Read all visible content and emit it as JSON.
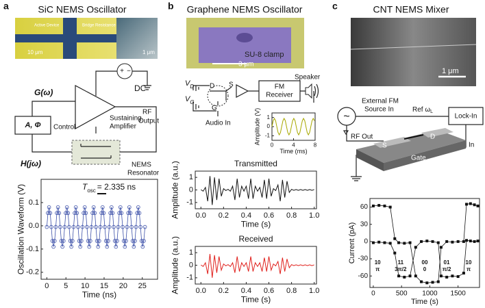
{
  "panels": {
    "a": {
      "letter": "a",
      "title": "SiC NEMS Oscillator",
      "sem_labels": [
        "Active Device",
        "Bridge Resistance",
        "10 μm",
        "1 μm"
      ],
      "gain": "G(ω)",
      "dc": "DC",
      "plus": "+",
      "minus": "−",
      "control_box": "A, Φ",
      "control": "Control",
      "amplifier": [
        "Sustaining",
        "Amplifier"
      ],
      "output": [
        "RF",
        "Output"
      ],
      "transfer": "H(jω)",
      "resonator": [
        "NEMS",
        "Resonator"
      ]
    },
    "b": {
      "letter": "b",
      "title": "Graphene NEMS Oscillator",
      "clamp": "SU-8 clamp",
      "scale": "3 μm",
      "vd": {
        "main": "V",
        "sub": "D"
      },
      "vg": {
        "main": "V",
        "sub": "G"
      },
      "d": "D",
      "s": "S",
      "g": "G",
      "receiver": [
        "FM",
        "Receiver"
      ],
      "speaker": "Speaker",
      "audio": "Audio In"
    },
    "c": {
      "letter": "c",
      "title": "CNT NEMS Mixer",
      "scale": "1 μm",
      "source": [
        "External FM",
        "Source In"
      ],
      "ref": {
        "main": "Ref ω",
        "sub": "L"
      },
      "lockin": "Lock-In",
      "rfout": "RF Out",
      "s": "S",
      "d": "D",
      "gate": "Gate",
      "in": "In",
      "tilde": "~"
    }
  },
  "chart_data": [
    {
      "type": "line",
      "marker": "circle",
      "xlabel": "Time (ns)",
      "ylabel": "Oscillation Waveform (V)",
      "annotation": {
        "symbol": "T",
        "subscript": "osc",
        "text": "= 2.335 ns"
      },
      "xlim": [
        -1.5,
        29
      ],
      "ylim": [
        -0.23,
        0.2
      ],
      "xticks": [
        0,
        5,
        10,
        15,
        20,
        25
      ],
      "yticks": [
        -0.2,
        -0.1,
        {
          "value": 0,
          "label": "0.0"
        },
        0.1
      ],
      "x": [
        0,
        0.29,
        0.58,
        0.88,
        1.17,
        1.46,
        1.75,
        2.04,
        2.34,
        2.63,
        2.92,
        3.21,
        3.5,
        3.8,
        4.09,
        4.38,
        4.67,
        4.96,
        5.26,
        5.55,
        5.84,
        6.13,
        6.42,
        6.72,
        7.01,
        7.3,
        7.59,
        7.88,
        8.18,
        8.47,
        8.76,
        9.05,
        9.34,
        9.64,
        9.93,
        10.22,
        10.51,
        10.8,
        11.1,
        11.39,
        11.68,
        11.97,
        12.26,
        12.56,
        12.85,
        13.14,
        13.43,
        13.72,
        14.02,
        14.31,
        14.6,
        14.89,
        15.18,
        15.48,
        15.77,
        16.06,
        16.35,
        16.64,
        16.94,
        17.23,
        17.52,
        17.81,
        18.1,
        18.4,
        18.69,
        18.98,
        19.27,
        19.56,
        19.86,
        20.15,
        20.44,
        20.73,
        21.02,
        21.32,
        21.61,
        21.9,
        22.19,
        22.48,
        22.78,
        23.07,
        23.36,
        23.65,
        23.94,
        24.24,
        24.53,
        24.82,
        25.11,
        25.4,
        25.7
      ],
      "series": [
        {
          "color": "#3b4fa8",
          "values": [
            -0.005,
            0.055,
            0.08,
            0.055,
            -0.005,
            -0.065,
            -0.09,
            -0.065,
            -0.005,
            0.055,
            0.08,
            0.055,
            -0.005,
            -0.065,
            -0.09,
            -0.065,
            -0.005,
            0.055,
            0.08,
            0.055,
            -0.005,
            -0.065,
            -0.09,
            -0.065,
            -0.005,
            0.055,
            0.08,
            0.055,
            -0.005,
            -0.065,
            -0.09,
            -0.065,
            -0.005,
            0.055,
            0.08,
            0.055,
            -0.005,
            -0.065,
            -0.09,
            -0.065,
            -0.005,
            0.055,
            0.08,
            0.055,
            -0.005,
            -0.065,
            -0.09,
            -0.065,
            -0.005,
            0.055,
            0.08,
            0.055,
            -0.005,
            -0.065,
            -0.09,
            -0.065,
            -0.005,
            0.055,
            0.08,
            0.055,
            -0.005,
            -0.065,
            -0.09,
            -0.065,
            -0.005,
            0.055,
            0.08,
            0.055,
            -0.005,
            -0.065,
            -0.09,
            -0.065,
            -0.005,
            0.055,
            0.08,
            0.055,
            -0.005,
            -0.065,
            -0.09,
            -0.065,
            -0.005,
            0.055,
            0.08,
            0.055,
            -0.005,
            -0.065,
            -0.09,
            -0.065,
            -0.005
          ]
        }
      ]
    },
    {
      "type": "line",
      "xlabel": "Time (ms)",
      "ylabel": "Amplitude (V)",
      "xlim": [
        0,
        8
      ],
      "ylim": [
        -1.5,
        1.5
      ],
      "xticks": [
        0,
        4,
        8
      ],
      "yticks": [
        -1,
        0,
        1
      ],
      "x": [
        0,
        0.23,
        0.45,
        0.68,
        0.9,
        1.13,
        1.35,
        1.58,
        1.8,
        2.03,
        2.25,
        2.48,
        2.7,
        2.93,
        3.15,
        3.38,
        3.6,
        3.83,
        4.05,
        4.28,
        4.5,
        4.73,
        4.95,
        5.18,
        5.4,
        5.63,
        5.85,
        6.08,
        6.3,
        6.53,
        6.75,
        6.98,
        7.2,
        7.43,
        7.65,
        7.88
      ],
      "series": [
        {
          "color": "#a8a800",
          "values": [
            0,
            0.64,
            0.9,
            0.64,
            0,
            -0.64,
            -0.9,
            -0.64,
            0,
            0.64,
            0.9,
            0.64,
            0,
            -0.64,
            -0.9,
            -0.64,
            0,
            0.64,
            0.9,
            0.64,
            0,
            -0.64,
            -0.9,
            -0.64,
            0,
            0.64,
            0.9,
            0.64,
            0,
            -0.64,
            -0.9,
            -0.64,
            0,
            0.64,
            0.9,
            0.64
          ]
        }
      ]
    },
    {
      "type": "line",
      "title": "Transmitted",
      "xlabel": "Time (s)",
      "ylabel": "Amplitude (a.u.)",
      "xlim": [
        -0.05,
        1.02
      ],
      "ylim": [
        -1.5,
        1.5
      ],
      "xticks": [
        {
          "value": 0,
          "label": "0.0"
        },
        0.2,
        0.4,
        0.6,
        0.8,
        {
          "value": 1,
          "label": "1.0"
        }
      ],
      "yticks": [
        -1,
        0,
        1
      ],
      "x": [
        0,
        0.02,
        0.04,
        0.06,
        0.08,
        0.1,
        0.12,
        0.14,
        0.16,
        0.18,
        0.2,
        0.22,
        0.24,
        0.26,
        0.28,
        0.3,
        0.32,
        0.34,
        0.36,
        0.38,
        0.4,
        0.42,
        0.44,
        0.46,
        0.48,
        0.5,
        0.52,
        0.54,
        0.56,
        0.58,
        0.6,
        0.62,
        0.64,
        0.66,
        0.68,
        0.7,
        0.72,
        0.74,
        0.76,
        0.78,
        0.8,
        0.82,
        0.84,
        0.86,
        0.88,
        0.9,
        0.92,
        0.94,
        0.96,
        0.98,
        1
      ],
      "series": [
        {
          "color": "#111111",
          "values": [
            0.02,
            -0.1,
            0.2,
            -0.9,
            1.1,
            -1.2,
            1,
            -0.8,
            0.9,
            -0.5,
            0.1,
            -0.05,
            0.05,
            -0.1,
            0.3,
            -0.8,
            0.9,
            -0.6,
            0.3,
            -0.1,
            0.3,
            -0.7,
            0.9,
            -0.7,
            0.3,
            -0.1,
            0.2,
            -0.6,
            0.8,
            -0.7,
            0.9,
            -0.5,
            0.1,
            -0.05,
            0.4,
            -0.9,
            0.8,
            -0.6,
            0.7,
            -0.2,
            0.05,
            -0.03,
            0.03,
            -0.03,
            0.03,
            -0.03,
            0.03,
            -0.03,
            0.03,
            -0.03,
            0.03
          ]
        }
      ]
    },
    {
      "type": "line",
      "title": "Received",
      "xlabel": "Time (s)",
      "ylabel": "Amplitude (a.u.)",
      "xlim": [
        -0.05,
        1.02
      ],
      "ylim": [
        -1.5,
        1.5
      ],
      "xticks": [
        {
          "value": 0,
          "label": "0.0"
        },
        0.2,
        0.4,
        0.6,
        0.8,
        {
          "value": 1,
          "label": "1.0"
        }
      ],
      "yticks": [
        -1,
        0,
        1
      ],
      "x": [
        0,
        0.02,
        0.04,
        0.06,
        0.08,
        0.1,
        0.12,
        0.14,
        0.16,
        0.18,
        0.2,
        0.22,
        0.24,
        0.26,
        0.28,
        0.3,
        0.32,
        0.34,
        0.36,
        0.38,
        0.4,
        0.42,
        0.44,
        0.46,
        0.48,
        0.5,
        0.52,
        0.54,
        0.56,
        0.58,
        0.6,
        0.62,
        0.64,
        0.66,
        0.68,
        0.7,
        0.72,
        0.74,
        0.76,
        0.78,
        0.8,
        0.82,
        0.84,
        0.86,
        0.88,
        0.9,
        0.92,
        0.94,
        0.96,
        0.98,
        1
      ],
      "series": [
        {
          "color": "#e0201c",
          "values": [
            0.02,
            -0.1,
            0.2,
            -0.7,
            0.9,
            -1,
            0.8,
            -0.6,
            0.7,
            -0.4,
            0.1,
            -0.05,
            0.05,
            -0.1,
            0.2,
            -0.6,
            0.7,
            -0.5,
            0.2,
            -0.1,
            0.2,
            -0.5,
            0.7,
            -0.5,
            0.2,
            -0.1,
            0.2,
            -0.5,
            0.6,
            -0.5,
            0.7,
            -0.4,
            0.1,
            -0.05,
            0.3,
            -0.7,
            0.6,
            -0.5,
            0.5,
            -0.2,
            0.05,
            -0.03,
            0.03,
            -0.03,
            0.03,
            -0.03,
            0.03,
            -0.03,
            0.03,
            -0.03,
            0.03
          ]
        }
      ]
    },
    {
      "type": "line",
      "marker": "square",
      "xlabel": "Time (s)",
      "ylabel": "Current (pA)",
      "xlim": [
        -60,
        1880
      ],
      "ylim": [
        -80,
        75
      ],
      "xticks": [
        0,
        500,
        1000,
        1500
      ],
      "yticks": [
        -60,
        -30,
        0,
        30,
        60
      ],
      "state_labels": [
        [
          "10",
          "π"
        ],
        [
          "11",
          "3π/2"
        ],
        [
          "00",
          "0"
        ],
        [
          "01",
          "π/2"
        ],
        [
          "10",
          "π"
        ]
      ],
      "x": [
        0,
        100,
        200,
        300,
        380,
        450,
        550,
        650,
        750,
        850,
        950,
        1050,
        1150,
        1200,
        1300,
        1400,
        1500,
        1600,
        1650,
        1720,
        1790,
        1850
      ],
      "series": [
        {
          "color": "#111111",
          "values": [
            62,
            63,
            62,
            60,
            5,
            -2,
            -3,
            -2,
            -60,
            -70,
            -72,
            -71,
            -70,
            -10,
            0,
            -1,
            0,
            0,
            65,
            66,
            64,
            62
          ]
        },
        {
          "color": "#111111",
          "values": [
            -2,
            -1,
            -2,
            -3,
            -20,
            -60,
            -62,
            -60,
            -10,
            0,
            1,
            0,
            -2,
            -60,
            -62,
            -60,
            -61,
            -55,
            2,
            1,
            0,
            1
          ]
        }
      ]
    }
  ]
}
